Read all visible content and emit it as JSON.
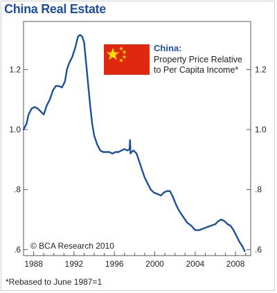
{
  "chart_data": {
    "type": "line",
    "title": "China Real Estate",
    "legend": {
      "title": "China:",
      "line1": "Property Price Relative",
      "line2": "to Per Capita Income*",
      "flag": "china-flag-icon"
    },
    "credit": "© BCA Research 2010",
    "footnote": "*Rebased to June 1987=1",
    "xlim": [
      1987.0,
      2009.5
    ],
    "ylim": [
      0.58,
      1.36
    ],
    "x_ticks": [
      1988,
      1992,
      1996,
      2000,
      2004,
      2008
    ],
    "x_tick_labels": [
      "1988",
      "1992",
      "1996",
      "2000",
      "2004",
      "2008"
    ],
    "y_ticks": [
      0.6,
      0.8,
      1.0,
      1.2
    ],
    "y_tick_labels": [
      ".6",
      ".8",
      "1.0",
      "1.2"
    ],
    "colors": {
      "line": "#1a4f9c",
      "title": "#1f4fa3",
      "flag": "#de2910",
      "star": "#ffde00"
    },
    "series": [
      {
        "x": [
          1987.0,
          1987.3,
          1987.5,
          1987.8,
          1988.1,
          1988.4,
          1988.7,
          1989.0,
          1989.3,
          1989.6,
          1989.9,
          1990.2,
          1990.5,
          1990.8,
          1991.1,
          1991.3,
          1991.5,
          1991.8,
          1992.1,
          1992.4,
          1992.6,
          1992.8,
          1993.0,
          1993.2,
          1993.4,
          1993.6,
          1993.8,
          1994.0,
          1994.3,
          1994.6,
          1994.9,
          1995.2,
          1995.5,
          1995.8,
          1996.1,
          1996.4,
          1996.7,
          1997.0,
          1997.3,
          1997.5,
          1997.55,
          1997.6,
          1997.7,
          1997.9,
          1998.2,
          1998.5,
          1998.8,
          1999.0,
          1999.3,
          1999.6,
          1999.9,
          2000.3,
          2000.6,
          2000.9,
          2001.2,
          2001.5,
          2001.8,
          2002.1,
          2002.4,
          2002.8,
          2003.2,
          2003.6,
          2004.0,
          2004.4,
          2004.8,
          2005.2,
          2005.6,
          2006.0,
          2006.3,
          2006.6,
          2006.9,
          2007.2,
          2007.5,
          2007.8,
          2008.1,
          2008.4,
          2008.7,
          2008.9
        ],
        "y": [
          1.0,
          1.02,
          1.05,
          1.07,
          1.075,
          1.07,
          1.06,
          1.05,
          1.08,
          1.1,
          1.13,
          1.145,
          1.145,
          1.14,
          1.16,
          1.2,
          1.22,
          1.24,
          1.27,
          1.31,
          1.315,
          1.31,
          1.29,
          1.22,
          1.15,
          1.08,
          1.02,
          0.98,
          0.95,
          0.93,
          0.925,
          0.925,
          0.925,
          0.92,
          0.925,
          0.925,
          0.93,
          0.935,
          0.93,
          0.935,
          0.965,
          0.92,
          0.925,
          0.93,
          0.92,
          0.89,
          0.86,
          0.84,
          0.82,
          0.8,
          0.79,
          0.785,
          0.78,
          0.79,
          0.795,
          0.795,
          0.775,
          0.75,
          0.73,
          0.71,
          0.69,
          0.68,
          0.665,
          0.665,
          0.67,
          0.675,
          0.68,
          0.685,
          0.695,
          0.7,
          0.695,
          0.685,
          0.68,
          0.665,
          0.645,
          0.625,
          0.61,
          0.595
        ]
      }
    ]
  }
}
